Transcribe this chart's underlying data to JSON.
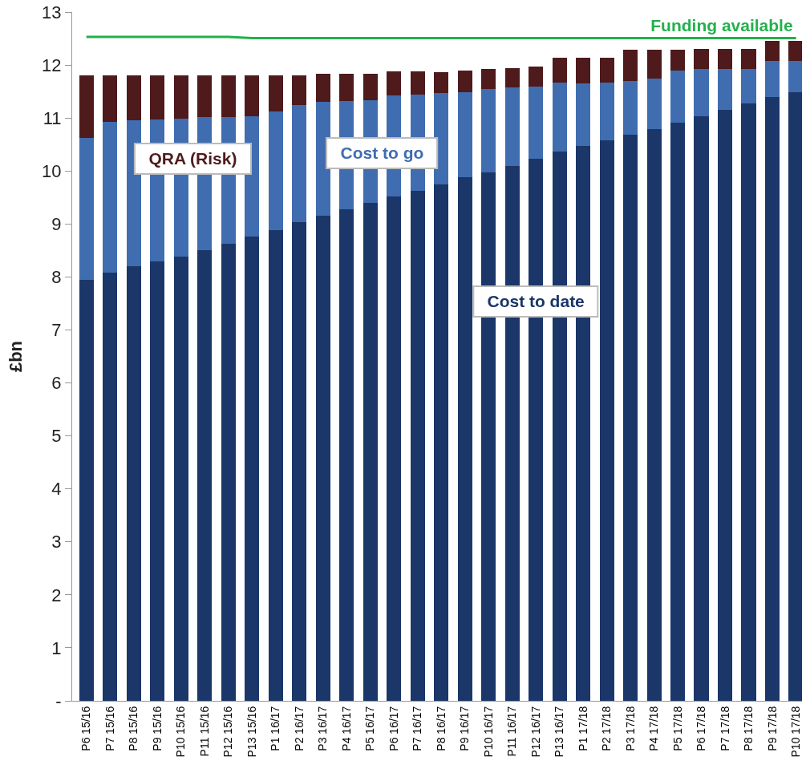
{
  "chart_data": {
    "type": "bar",
    "stacked": true,
    "ylabel": "£bn",
    "categories": [
      "P6 15/16",
      "P7 15/16",
      "P8 15/16",
      "P9 15/16",
      "P10 15/16",
      "P11 15/16",
      "P12 15/16",
      "P13 15/16",
      "P1 16/17",
      "P2 16/17",
      "P3 16/17",
      "P4 16/17",
      "P5 16/17",
      "P6 16/17",
      "P7 16/17",
      "P8 16/17",
      "P9 16/17",
      "P10 16/17",
      "P11 16/17",
      "P12 16/17",
      "P13 16/17",
      "P1 17/18",
      "P2 17/18",
      "P3 17/18",
      "P4 17/18",
      "P5 17/18",
      "P6 17/18",
      "P7 17/18",
      "P8 17/18",
      "P9 17/18",
      "P10 17/18"
    ],
    "series": [
      {
        "name": "Cost to date",
        "color": "#1b3668",
        "values": [
          7.95,
          8.08,
          8.2,
          8.3,
          8.39,
          8.5,
          8.62,
          8.76,
          8.89,
          9.03,
          9.16,
          9.28,
          9.4,
          9.52,
          9.63,
          9.74,
          9.88,
          9.98,
          10.09,
          10.23,
          10.36,
          10.48,
          10.58,
          10.69,
          10.79,
          10.91,
          11.03,
          11.15,
          11.27,
          11.39,
          11.49
        ]
      },
      {
        "name": "Cost to go",
        "color": "#3f6db0",
        "values": [
          2.67,
          2.85,
          2.76,
          2.67,
          2.6,
          2.52,
          2.4,
          2.27,
          2.23,
          2.21,
          2.14,
          2.04,
          1.94,
          1.9,
          1.81,
          1.73,
          1.61,
          1.57,
          1.48,
          1.36,
          1.31,
          1.18,
          1.09,
          1.01,
          0.95,
          0.99,
          0.89,
          0.77,
          0.65,
          0.69,
          0.59
        ]
      },
      {
        "name": "QRA (Risk)",
        "color": "#4e1a1c",
        "values": [
          1.18,
          0.87,
          0.84,
          0.83,
          0.81,
          0.78,
          0.78,
          0.77,
          0.69,
          0.57,
          0.53,
          0.51,
          0.49,
          0.46,
          0.44,
          0.4,
          0.41,
          0.37,
          0.37,
          0.38,
          0.46,
          0.47,
          0.46,
          0.59,
          0.55,
          0.39,
          0.39,
          0.39,
          0.39,
          0.38,
          0.38
        ]
      },
      {
        "name": "Funding available",
        "type": "line",
        "color": "#22b14c",
        "values": [
          12.53,
          12.53,
          12.53,
          12.53,
          12.53,
          12.53,
          12.53,
          12.51,
          12.51,
          12.51,
          12.51,
          12.51,
          12.51,
          12.51,
          12.51,
          12.51,
          12.51,
          12.51,
          12.51,
          12.51,
          12.51,
          12.51,
          12.51,
          12.51,
          12.51,
          12.51,
          12.51,
          12.51,
          12.51,
          12.51,
          12.51
        ]
      }
    ],
    "ylim": [
      0,
      13
    ],
    "yticks": [
      {
        "value": 0,
        "label": "-"
      },
      1,
      2,
      3,
      4,
      5,
      6,
      7,
      8,
      9,
      10,
      11,
      12,
      13
    ],
    "grid": false,
    "legend": false
  }
}
